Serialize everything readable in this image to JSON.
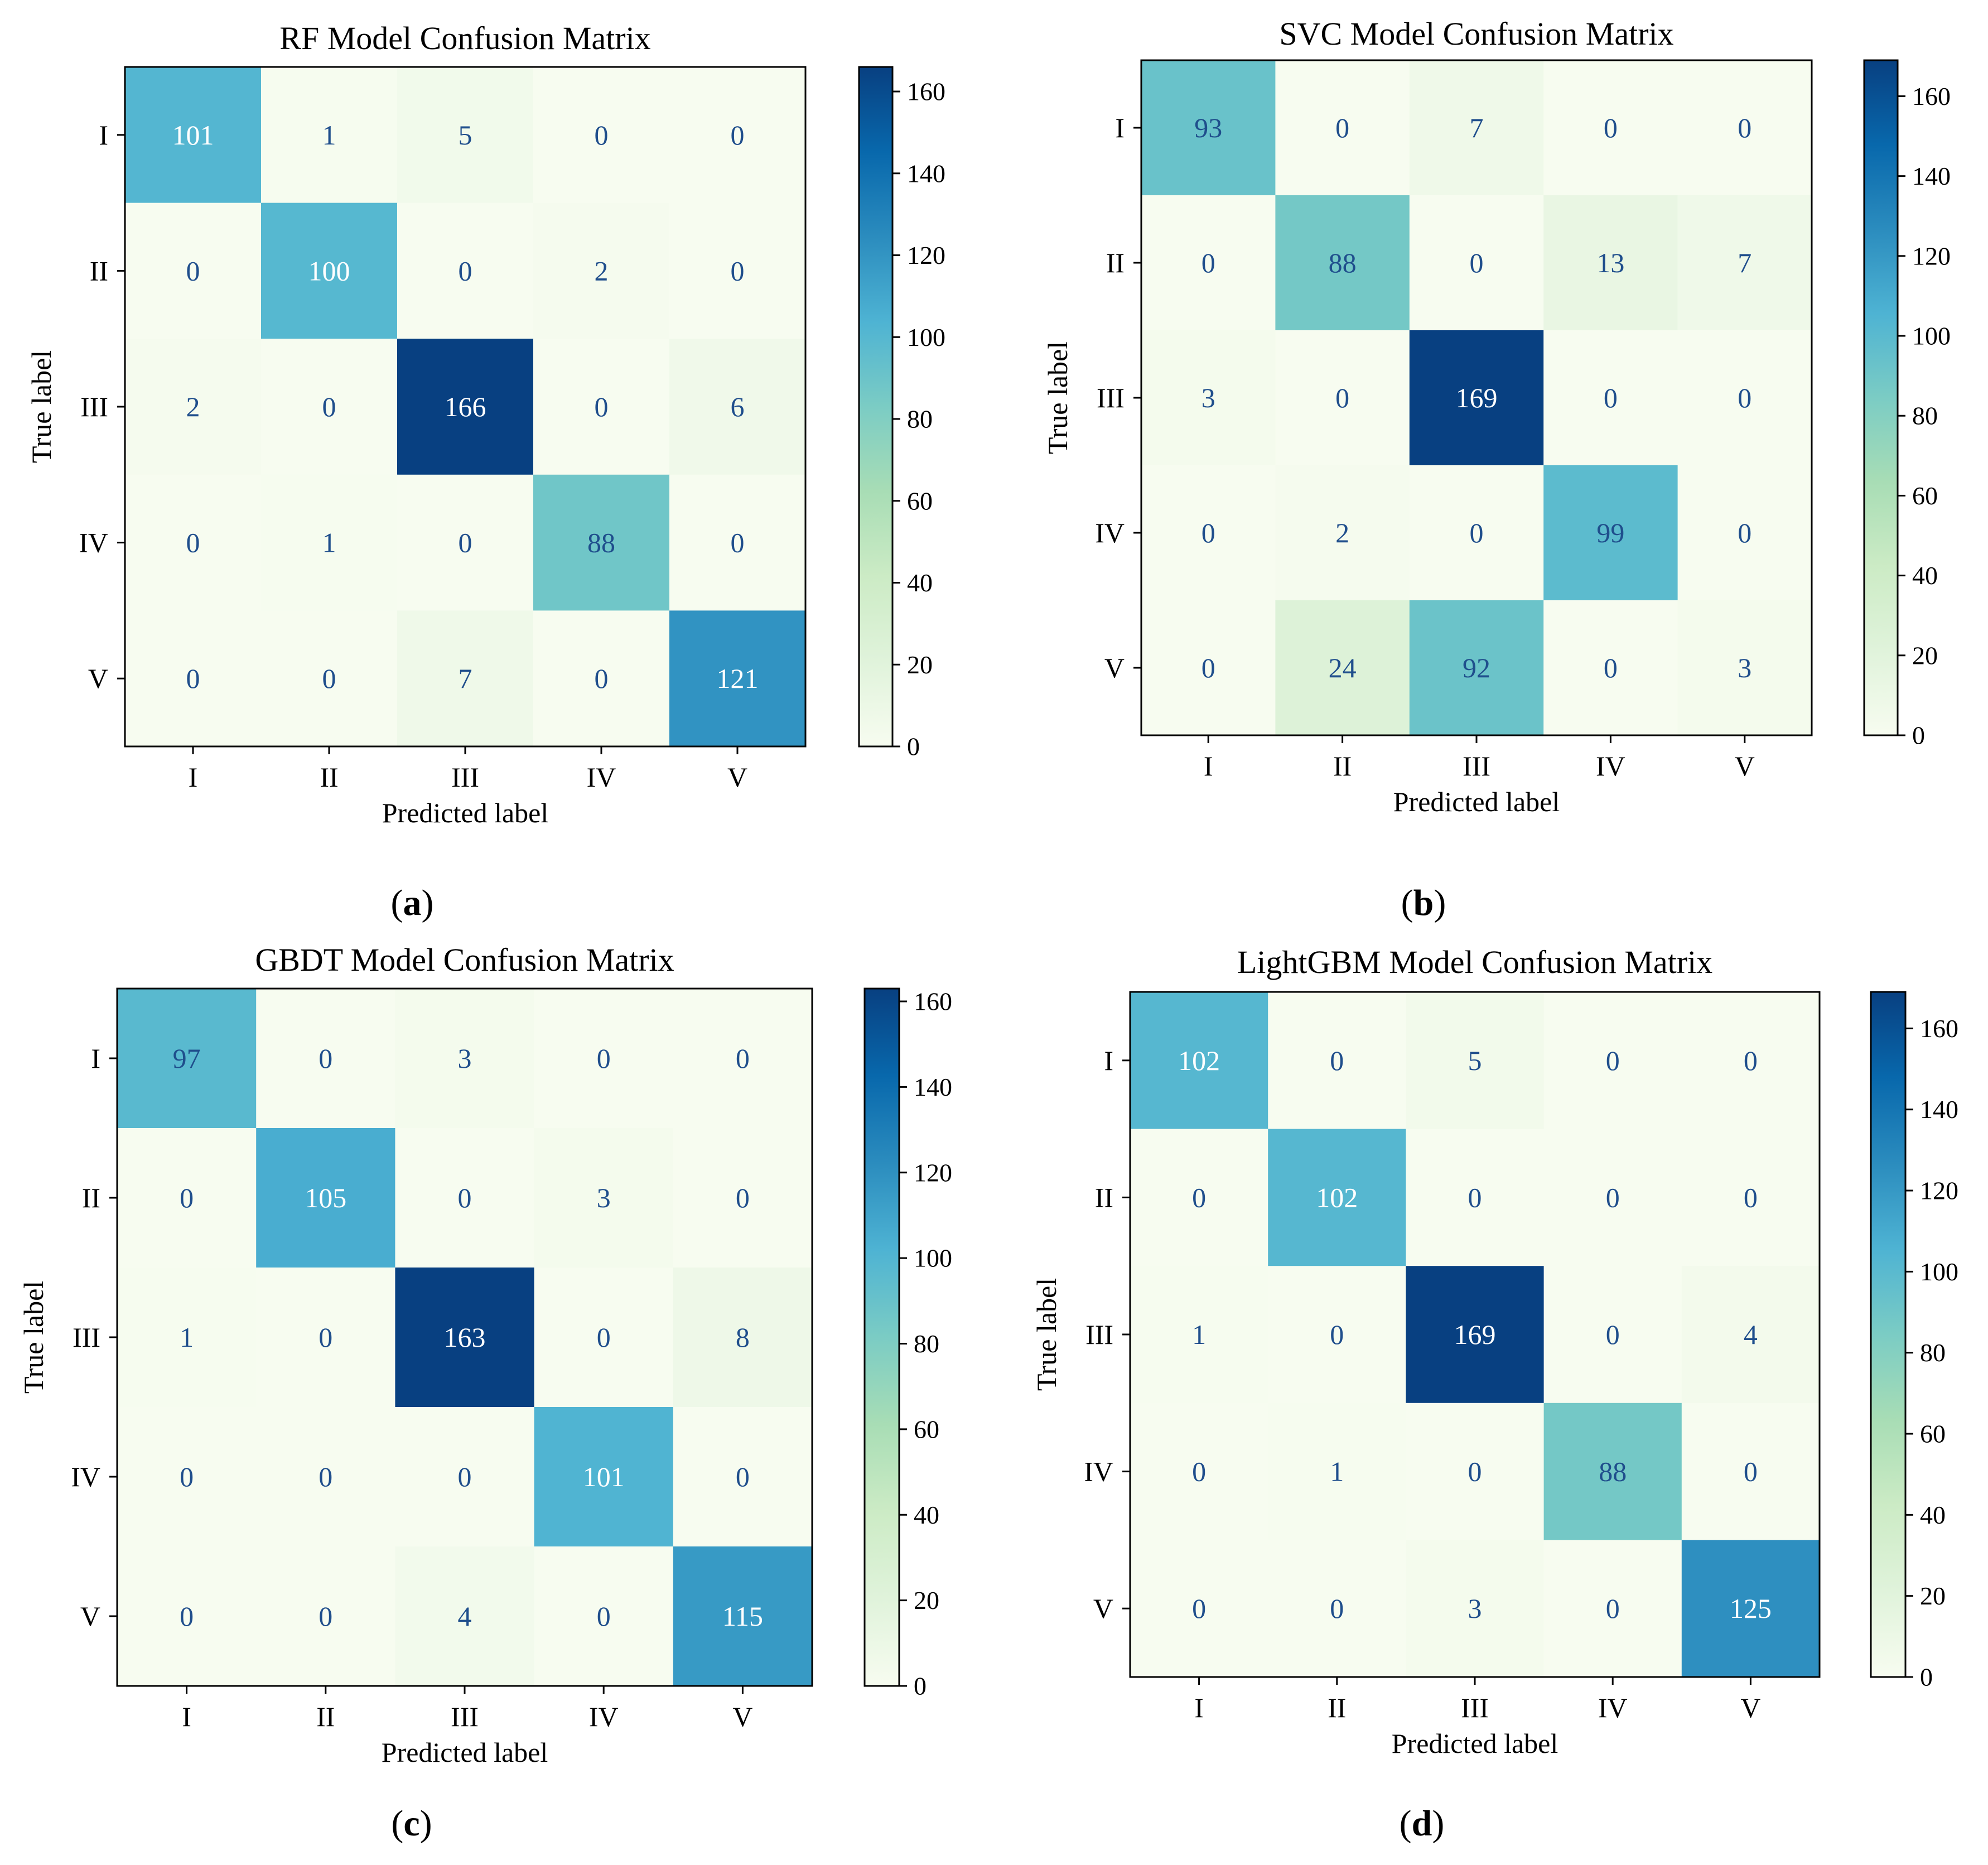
{
  "figure": {
    "caption_labels": [
      "a",
      "b",
      "c",
      "d"
    ]
  },
  "chart_data": [
    {
      "type": "heatmap",
      "title": "RF Model Confusion Matrix",
      "xlabel": "Predicted label",
      "ylabel": "True label",
      "x_categories": [
        "I",
        "II",
        "III",
        "IV",
        "V"
      ],
      "y_categories": [
        "I",
        "II",
        "III",
        "IV",
        "V"
      ],
      "matrix": [
        [
          101,
          1,
          5,
          0,
          0
        ],
        [
          0,
          100,
          0,
          2,
          0
        ],
        [
          2,
          0,
          166,
          0,
          6
        ],
        [
          0,
          1,
          0,
          88,
          0
        ],
        [
          0,
          0,
          7,
          0,
          121
        ]
      ],
      "colorbar_range": [
        0,
        166
      ],
      "colorbar_ticks": [
        0,
        20,
        40,
        60,
        80,
        100,
        120,
        140,
        160
      ],
      "colormap": "GnBu",
      "panel_label": "a"
    },
    {
      "type": "heatmap",
      "title": "SVC Model Confusion Matrix",
      "xlabel": "Predicted label",
      "ylabel": "True label",
      "x_categories": [
        "I",
        "II",
        "III",
        "IV",
        "V"
      ],
      "y_categories": [
        "I",
        "II",
        "III",
        "IV",
        "V"
      ],
      "matrix": [
        [
          93,
          0,
          7,
          0,
          0
        ],
        [
          0,
          88,
          0,
          13,
          7
        ],
        [
          3,
          0,
          169,
          0,
          0
        ],
        [
          0,
          2,
          0,
          99,
          0
        ],
        [
          0,
          24,
          92,
          0,
          3
        ]
      ],
      "colorbar_range": [
        0,
        169
      ],
      "colorbar_ticks": [
        0,
        20,
        40,
        60,
        80,
        100,
        120,
        140,
        160
      ],
      "colormap": "GnBu",
      "panel_label": "b"
    },
    {
      "type": "heatmap",
      "title": "GBDT Model Confusion Matrix",
      "xlabel": "Predicted label",
      "ylabel": "True label",
      "x_categories": [
        "I",
        "II",
        "III",
        "IV",
        "V"
      ],
      "y_categories": [
        "I",
        "II",
        "III",
        "IV",
        "V"
      ],
      "matrix": [
        [
          97,
          0,
          3,
          0,
          0
        ],
        [
          0,
          105,
          0,
          3,
          0
        ],
        [
          1,
          0,
          163,
          0,
          8
        ],
        [
          0,
          0,
          0,
          101,
          0
        ],
        [
          0,
          0,
          4,
          0,
          115
        ]
      ],
      "colorbar_range": [
        0,
        163
      ],
      "colorbar_ticks": [
        0,
        20,
        40,
        60,
        80,
        100,
        120,
        140,
        160
      ],
      "colormap": "GnBu",
      "panel_label": "c"
    },
    {
      "type": "heatmap",
      "title": "LightGBM Model Confusion Matrix",
      "xlabel": "Predicted label",
      "ylabel": "True label",
      "x_categories": [
        "I",
        "II",
        "III",
        "IV",
        "V"
      ],
      "y_categories": [
        "I",
        "II",
        "III",
        "IV",
        "V"
      ],
      "matrix": [
        [
          102,
          0,
          5,
          0,
          0
        ],
        [
          0,
          102,
          0,
          0,
          0
        ],
        [
          1,
          0,
          169,
          0,
          4
        ],
        [
          0,
          1,
          0,
          88,
          0
        ],
        [
          0,
          0,
          3,
          0,
          125
        ]
      ],
      "colorbar_range": [
        0,
        169
      ],
      "colorbar_ticks": [
        0,
        20,
        40,
        60,
        80,
        100,
        120,
        140,
        160
      ],
      "colormap": "GnBu",
      "panel_label": "d"
    }
  ]
}
